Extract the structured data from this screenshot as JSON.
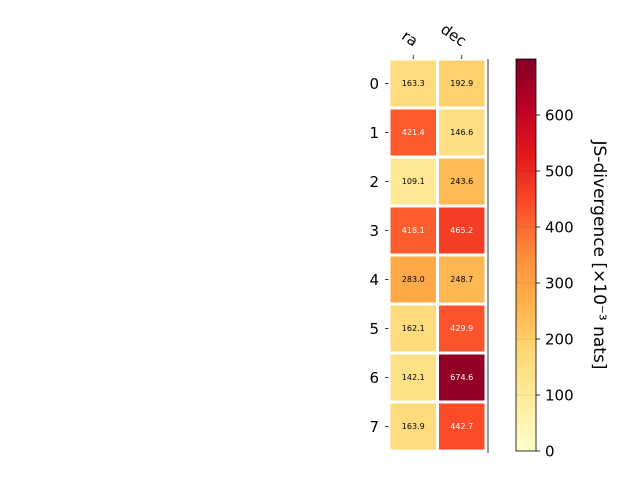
{
  "chart_data": {
    "type": "heatmap",
    "x_categories": [
      "ra",
      "dec"
    ],
    "y_categories": [
      "0",
      "1",
      "2",
      "3",
      "4",
      "5",
      "6",
      "7"
    ],
    "values": [
      [
        163.3,
        192.9
      ],
      [
        421.4,
        146.6
      ],
      [
        109.1,
        243.6
      ],
      [
        418.1,
        465.2
      ],
      [
        283.0,
        248.7
      ],
      [
        162.1,
        429.9
      ],
      [
        142.1,
        674.6
      ],
      [
        163.9,
        442.7
      ]
    ],
    "cell_labels": [
      [
        "163.3",
        "192.9"
      ],
      [
        "421.4",
        "146.6"
      ],
      [
        "109.1",
        "243.6"
      ],
      [
        "418.1",
        "465.2"
      ],
      [
        "283.0",
        "248.7"
      ],
      [
        "162.1",
        "429.9"
      ],
      [
        "142.1",
        "674.6"
      ],
      [
        "163.9",
        "442.7"
      ]
    ],
    "colormap": "YlOrRd",
    "colorbar": {
      "label": "JS-divergence [×10⁻³ nats]",
      "range": [
        0,
        700
      ],
      "ticks": [
        0,
        100,
        200,
        300,
        400,
        500,
        600
      ],
      "tick_labels": [
        "0",
        "100",
        "200",
        "300",
        "400",
        "500",
        "600"
      ],
      "position": "right"
    },
    "colors": {
      "ylorrd": [
        "#ffffcc",
        "#ffeda0",
        "#fed976",
        "#feb24c",
        "#fd8d3c",
        "#fc4e2a",
        "#e31a1c",
        "#bd0026",
        "#800026"
      ],
      "grid": "#ffffff",
      "axis": "#000000"
    },
    "text_color_threshold": 400
  }
}
